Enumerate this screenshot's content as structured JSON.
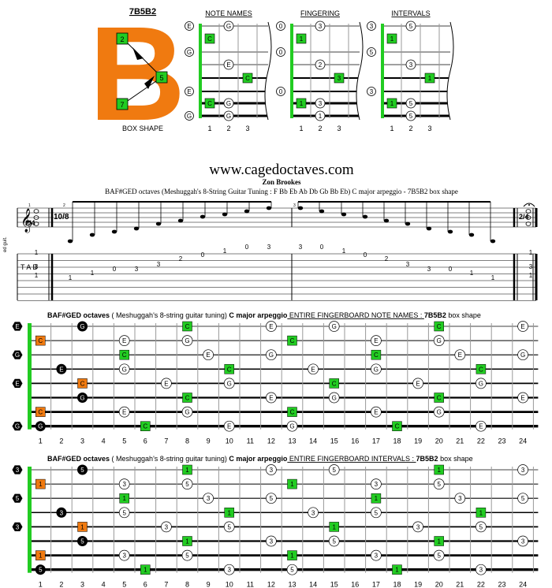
{
  "box": {
    "title": "7B5B2",
    "caption": "BOX SHAPE",
    "letter": "B",
    "nums": [
      "2",
      "5",
      "7"
    ]
  },
  "diagrams": {
    "note_names": {
      "title": "NOTE NAMES",
      "left": [
        "E",
        "G",
        "",
        "E",
        "",
        "G"
      ],
      "cells": [
        [
          "",
          "G"
        ],
        [
          "C",
          ""
        ],
        [
          "",
          "E"
        ],
        [
          "",
          "",
          "C"
        ],
        [
          "C",
          "G"
        ],
        [
          "",
          "G"
        ]
      ]
    },
    "fingering": {
      "title": "FINGERING",
      "left": [
        "0",
        "0",
        "",
        "0",
        "",
        ""
      ],
      "cells": [
        [
          "",
          "3"
        ],
        [
          "1",
          ""
        ],
        [
          "",
          "2"
        ],
        [
          "",
          "",
          "3"
        ],
        [
          "1",
          "3"
        ],
        [
          "",
          "1"
        ]
      ]
    },
    "intervals": {
      "title": "INTERVALS",
      "left": [
        "3",
        "5",
        "",
        "3",
        "",
        ""
      ],
      "cells": [
        [
          "",
          "5"
        ],
        [
          "1",
          ""
        ],
        [
          "",
          "3"
        ],
        [
          "",
          "",
          "1"
        ],
        [
          "1",
          "5"
        ],
        [
          "",
          "5"
        ]
      ]
    },
    "fret_numbers": [
      "1",
      "2",
      "3"
    ]
  },
  "site": "www.cagedoctaves.com",
  "author": "Zon Brookes",
  "subtitle": "BAF#GED octaves (Meshuggah's 8-String Guitar Tuning : F Bb Eb Ab Db Gb Bb Eb) C major arpeggio - 7B5B2 box shape",
  "staff": {
    "tab_label": "T A B",
    "inst_label": "ed guit.",
    "time_sig_start": "2/4",
    "time_sig_mid": "10/8",
    "time_sig_end": "2/4",
    "measure_nums": [
      "1",
      "2",
      "3"
    ],
    "tab_notes_up": [
      "1",
      "1",
      "0",
      "3",
      "3",
      "2",
      "0",
      "1",
      "0",
      "3"
    ],
    "tab_notes_down": [
      "3",
      "0",
      "1",
      "0",
      "2",
      "3",
      "3",
      "0",
      "1",
      "1"
    ],
    "end_tab": [
      "1",
      "3",
      "1"
    ]
  },
  "fb1": {
    "title_bold": "BAF#GED octaves",
    "title_mid": " ( Meshuggah's 8-string guitar tuning) ",
    "title_bold2": "C major arpeggio",
    "title_rest": " ENTIRE FINGERBOARD NOTE NAMES : ",
    "title_box": "7B5B2",
    "title_end": " box shape",
    "open": [
      "E",
      "",
      "G",
      "",
      "E",
      "",
      "",
      "G"
    ]
  },
  "fb2": {
    "title_bold": "BAF#GED octaves",
    "title_mid": " ( Meshuggah's 8-string guitar tuning) ",
    "title_bold2": "C major arpeggio",
    "title_rest": " ENTIRE FINGERBOARD INTERVALS : ",
    "title_box": "7B5B2",
    "title_end": " box shape",
    "open": [
      "3",
      "",
      "5",
      "",
      "3",
      "",
      "",
      ""
    ]
  },
  "fret_labels": [
    "1",
    "2",
    "3",
    "4",
    "5",
    "6",
    "7",
    "8",
    "9",
    "10",
    "11",
    "12",
    "13",
    "14",
    "15",
    "16",
    "17",
    "18",
    "19",
    "20",
    "21",
    "22",
    "23",
    "24"
  ],
  "fb_notes": [
    [
      [
        3,
        "G",
        "b"
      ],
      [
        8,
        "C",
        "g"
      ],
      [
        12,
        "E",
        "w"
      ],
      [
        15,
        "G",
        "w"
      ],
      [
        20,
        "C",
        "g"
      ],
      [
        24,
        "E",
        "w"
      ]
    ],
    [
      [
        1,
        "C",
        "o"
      ],
      [
        5,
        "E",
        "w"
      ],
      [
        8,
        "G",
        "w"
      ],
      [
        13,
        "C",
        "g"
      ],
      [
        17,
        "E",
        "w"
      ],
      [
        20,
        "G",
        "w"
      ]
    ],
    [
      [
        5,
        "C",
        "g"
      ],
      [
        9,
        "E",
        "w"
      ],
      [
        12,
        "G",
        "w"
      ],
      [
        17,
        "C",
        "g"
      ],
      [
        21,
        "E",
        "w"
      ],
      [
        24,
        "G",
        "w"
      ]
    ],
    [
      [
        2,
        "E",
        "b"
      ],
      [
        5,
        "G",
        "w"
      ],
      [
        10,
        "C",
        "g"
      ],
      [
        14,
        "E",
        "w"
      ],
      [
        17,
        "G",
        "w"
      ],
      [
        22,
        "C",
        "g"
      ]
    ],
    [
      [
        3,
        "C",
        "o"
      ],
      [
        7,
        "E",
        "w"
      ],
      [
        10,
        "G",
        "w"
      ],
      [
        15,
        "C",
        "g"
      ],
      [
        19,
        "E",
        "w"
      ],
      [
        22,
        "G",
        "w"
      ]
    ],
    [
      [
        3,
        "G",
        "b"
      ],
      [
        8,
        "C",
        "g"
      ],
      [
        12,
        "E",
        "w"
      ],
      [
        15,
        "G",
        "w"
      ],
      [
        20,
        "C",
        "g"
      ],
      [
        24,
        "E",
        "w"
      ]
    ],
    [
      [
        1,
        "C",
        "o"
      ],
      [
        5,
        "E",
        "w"
      ],
      [
        8,
        "G",
        "w"
      ],
      [
        13,
        "C",
        "g"
      ],
      [
        17,
        "E",
        "w"
      ],
      [
        20,
        "G",
        "w"
      ]
    ],
    [
      [
        1,
        "G",
        "b"
      ],
      [
        6,
        "C",
        "g"
      ],
      [
        10,
        "E",
        "w"
      ],
      [
        13,
        "G",
        "w"
      ],
      [
        18,
        "C",
        "g"
      ],
      [
        22,
        "E",
        "w"
      ]
    ]
  ],
  "fb_ints": [
    [
      [
        3,
        "5",
        "b"
      ],
      [
        8,
        "1",
        "g"
      ],
      [
        12,
        "3",
        "w"
      ],
      [
        15,
        "5",
        "w"
      ],
      [
        20,
        "1",
        "g"
      ],
      [
        24,
        "3",
        "w"
      ]
    ],
    [
      [
        1,
        "1",
        "o"
      ],
      [
        5,
        "3",
        "w"
      ],
      [
        8,
        "5",
        "w"
      ],
      [
        13,
        "1",
        "g"
      ],
      [
        17,
        "3",
        "w"
      ],
      [
        20,
        "5",
        "w"
      ]
    ],
    [
      [
        5,
        "1",
        "g"
      ],
      [
        9,
        "3",
        "w"
      ],
      [
        12,
        "5",
        "w"
      ],
      [
        17,
        "1",
        "g"
      ],
      [
        21,
        "3",
        "w"
      ],
      [
        24,
        "5",
        "w"
      ]
    ],
    [
      [
        2,
        "3",
        "b"
      ],
      [
        5,
        "5",
        "w"
      ],
      [
        10,
        "1",
        "g"
      ],
      [
        14,
        "3",
        "w"
      ],
      [
        17,
        "5",
        "w"
      ],
      [
        22,
        "1",
        "g"
      ]
    ],
    [
      [
        3,
        "1",
        "o"
      ],
      [
        7,
        "3",
        "w"
      ],
      [
        10,
        "5",
        "w"
      ],
      [
        15,
        "1",
        "g"
      ],
      [
        19,
        "3",
        "w"
      ],
      [
        22,
        "5",
        "w"
      ]
    ],
    [
      [
        3,
        "5",
        "b"
      ],
      [
        8,
        "1",
        "g"
      ],
      [
        12,
        "3",
        "w"
      ],
      [
        15,
        "5",
        "w"
      ],
      [
        20,
        "1",
        "g"
      ],
      [
        24,
        "3",
        "w"
      ]
    ],
    [
      [
        1,
        "1",
        "o"
      ],
      [
        5,
        "3",
        "w"
      ],
      [
        8,
        "5",
        "w"
      ],
      [
        13,
        "1",
        "g"
      ],
      [
        17,
        "3",
        "w"
      ],
      [
        20,
        "5",
        "w"
      ]
    ],
    [
      [
        1,
        "5",
        "b"
      ],
      [
        6,
        "1",
        "g"
      ],
      [
        10,
        "3",
        "w"
      ],
      [
        13,
        "5",
        "w"
      ],
      [
        18,
        "1",
        "g"
      ],
      [
        22,
        "3",
        "w"
      ]
    ]
  ],
  "colors": {
    "green": "#22cc22",
    "orange": "#f07a10",
    "black": "#000000",
    "white": "#ffffff",
    "nut": "#22cc22"
  }
}
